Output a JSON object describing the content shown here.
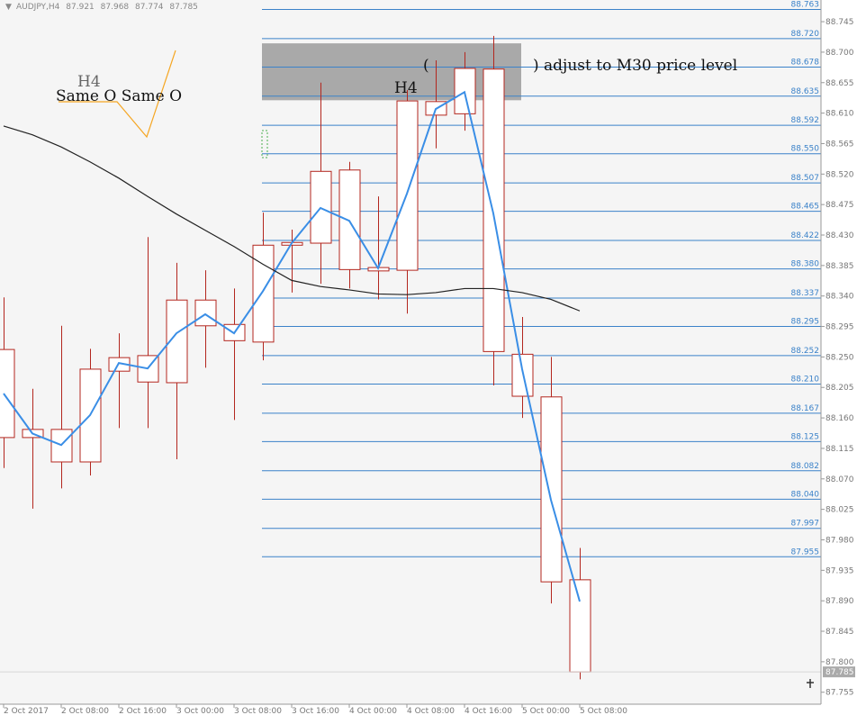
{
  "chart_data": {
    "type": "candlestick",
    "symbol": "AUDJPY,H4",
    "x": [
      "2 Oct 2017",
      null,
      "2 Oct 08:00",
      null,
      "2 Oct 16:00",
      null,
      "3 Oct 00:00",
      null,
      "3 Oct 08:00",
      null,
      "3 Oct 16:00",
      null,
      "4 Oct 00:00",
      null,
      "4 Oct 08:00",
      null,
      "4 Oct 16:00",
      null,
      "5 Oct 00:00",
      null,
      "5 Oct 08:00"
    ],
    "open": [
      88.261,
      88.131,
      88.143,
      88.095,
      88.229,
      88.252,
      88.212,
      88.334,
      88.298,
      88.272,
      88.415,
      88.418,
      88.526,
      88.377,
      88.378,
      88.627,
      88.609,
      88.675,
      88.254,
      88.191,
      87.921
    ],
    "high": [
      88.338,
      88.203,
      88.296,
      88.262,
      88.285,
      88.427,
      88.389,
      88.378,
      88.351,
      88.463,
      88.438,
      88.655,
      88.538,
      88.487,
      88.644,
      88.688,
      88.7,
      88.724,
      88.309,
      88.25,
      87.968
    ],
    "low": [
      88.086,
      88.026,
      88.056,
      88.075,
      88.145,
      88.145,
      88.099,
      88.234,
      88.157,
      88.245,
      88.345,
      88.358,
      88.351,
      88.335,
      88.314,
      88.558,
      88.584,
      88.208,
      88.16,
      87.886,
      87.774
    ],
    "close": [
      88.131,
      88.143,
      88.095,
      88.232,
      88.249,
      88.213,
      88.334,
      88.296,
      88.274,
      88.415,
      88.419,
      88.524,
      88.379,
      88.382,
      88.628,
      88.607,
      88.676,
      88.258,
      88.192,
      87.918,
      87.785
    ],
    "candle_color": "#b3261e",
    "body_fill": "#ffffff",
    "series": [
      {
        "color": "#3a8ee6",
        "values": [
          88.196,
          88.137,
          88.12,
          88.164,
          88.241,
          88.233,
          88.285,
          88.313,
          88.285,
          88.347,
          88.418,
          88.47,
          88.451,
          88.381,
          88.491,
          88.616,
          88.641,
          88.462,
          88.232,
          88.039,
          87.889
        ]
      },
      {
        "color": "#222222",
        "values": [
          88.591,
          88.578,
          88.56,
          88.538,
          88.514,
          88.487,
          88.461,
          88.437,
          88.413,
          88.387,
          88.363,
          88.354,
          88.349,
          88.343,
          88.342,
          88.345,
          88.351,
          88.351,
          88.345,
          88.335,
          88.318
        ]
      }
    ],
    "zone": {
      "from": 88.629,
      "to": 88.713,
      "color": "#a9a9a9"
    },
    "levels_color": "#3b82c9",
    "levels": [
      {
        "value": 88.763,
        "label": "88.763"
      },
      {
        "value": 88.72,
        "label": "88.720"
      },
      {
        "value": 88.678,
        "label": "88.678"
      },
      {
        "value": 88.635,
        "label": "88.635"
      },
      {
        "value": 88.592,
        "label": "88.592"
      },
      {
        "value": 88.55,
        "label": "88.550"
      },
      {
        "value": 88.507,
        "label": "88.507"
      },
      {
        "value": 88.465,
        "label": "88.465"
      },
      {
        "value": 88.422,
        "label": "88.422"
      },
      {
        "value": 88.38,
        "label": "88.380"
      },
      {
        "value": 88.337,
        "label": "88.337"
      },
      {
        "value": 88.295,
        "label": "88.295"
      },
      {
        "value": 88.252,
        "label": "88.252"
      },
      {
        "value": 88.21,
        "label": "88.210"
      },
      {
        "value": 88.167,
        "label": "88.167"
      },
      {
        "value": 88.125,
        "label": "88.125"
      },
      {
        "value": 88.082,
        "label": "88.082"
      },
      {
        "value": 88.04,
        "label": "88.040"
      },
      {
        "value": 87.997,
        "label": "87.997"
      },
      {
        "value": 87.955,
        "label": "87.955"
      }
    ],
    "ylim": [
      87.74,
      88.777
    ],
    "yticks": [
      {
        "value": 88.745,
        "label": "88.745"
      },
      {
        "value": 88.7,
        "label": "88.700"
      },
      {
        "value": 88.655,
        "label": "88.655"
      },
      {
        "value": 88.61,
        "label": "88.610"
      },
      {
        "value": 88.565,
        "label": "88.565"
      },
      {
        "value": 88.52,
        "label": "88.520"
      },
      {
        "value": 88.475,
        "label": "88.475"
      },
      {
        "value": 88.43,
        "label": "88.430"
      },
      {
        "value": 88.385,
        "label": "88.385"
      },
      {
        "value": 88.34,
        "label": "88.340"
      },
      {
        "value": 88.295,
        "label": "88.295"
      },
      {
        "value": 88.25,
        "label": "88.250"
      },
      {
        "value": 88.205,
        "label": "88.205"
      },
      {
        "value": 88.16,
        "label": "88.160"
      },
      {
        "value": 88.115,
        "label": "88.115"
      },
      {
        "value": 88.07,
        "label": "88.070"
      },
      {
        "value": 88.025,
        "label": "88.025"
      },
      {
        "value": 87.98,
        "label": "87.980"
      },
      {
        "value": 87.935,
        "label": "87.935"
      },
      {
        "value": 87.89,
        "label": "87.890"
      },
      {
        "value": 87.845,
        "label": "87.845"
      },
      {
        "value": 87.8,
        "label": "87.800"
      },
      {
        "value": 87.755,
        "label": "87.755"
      }
    ],
    "annotations": [
      "H4",
      "Same O Same O",
      "H4",
      "(",
      ") adjust to M30 price level"
    ]
  }
}
